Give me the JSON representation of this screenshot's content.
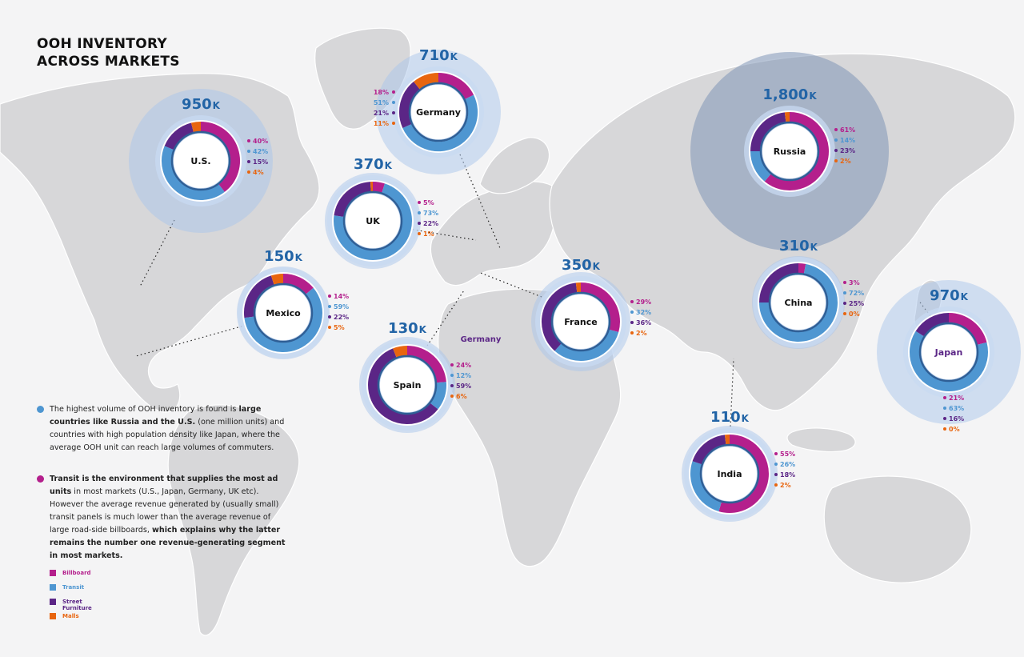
{
  "title": {
    "line1": "OOH INVENTORY",
    "line2": "ACROSS MARKETS"
  },
  "colors": {
    "billboard": "#b41f8c",
    "transit": "#4e96d1",
    "street_furniture": "#5b2686",
    "malls": "#e8650f",
    "value_blue": "#2264a6",
    "land": "#d7d7d9",
    "bubble": "#a9c5ec"
  },
  "stray_label": "Germany",
  "markets": [
    {
      "name": "U.S.",
      "volume_k": 950,
      "volume_label": "950",
      "shares": {
        "billboard": 40,
        "transit": 42,
        "street_furniture": 15,
        "malls": 4
      },
      "labels": [
        "40%",
        "42%",
        "15%",
        "4%"
      ]
    },
    {
      "name": "Germany",
      "volume_k": 710,
      "volume_label": "710",
      "shares": {
        "billboard": 18,
        "transit": 51,
        "street_furniture": 21,
        "malls": 11
      },
      "labels": [
        "18%",
        "51%",
        "21%",
        "11%"
      ]
    },
    {
      "name": "UK",
      "volume_k": 370,
      "volume_label": "370",
      "shares": {
        "billboard": 5,
        "transit": 73,
        "street_furniture": 22,
        "malls": 1
      },
      "labels": [
        "5%",
        "73%",
        "22%",
        "1%"
      ]
    },
    {
      "name": "Russia",
      "volume_k": 1800,
      "volume_label": "1,800",
      "shares": {
        "billboard": 61,
        "transit": 14,
        "street_furniture": 23,
        "malls": 2
      },
      "labels": [
        "61%",
        "14%",
        "23%",
        "2%"
      ]
    },
    {
      "name": "Mexico",
      "volume_k": 150,
      "volume_label": "150",
      "shares": {
        "billboard": 14,
        "transit": 59,
        "street_furniture": 22,
        "malls": 5
      },
      "labels": [
        "14%",
        "59%",
        "22%",
        "5%"
      ]
    },
    {
      "name": "France",
      "volume_k": 350,
      "volume_label": "350",
      "shares": {
        "billboard": 29,
        "transit": 32,
        "street_furniture": 36,
        "malls": 2
      },
      "labels": [
        "29%",
        "32%",
        "36%",
        "2%"
      ]
    },
    {
      "name": "China",
      "volume_k": 310,
      "volume_label": "310",
      "shares": {
        "billboard": 3,
        "transit": 72,
        "street_furniture": 25,
        "malls": 0
      },
      "labels": [
        "3%",
        "72%",
        "25%",
        "0%"
      ]
    },
    {
      "name": "Japan",
      "volume_k": 970,
      "volume_label": "970",
      "shares": {
        "billboard": 21,
        "transit": 63,
        "street_furniture": 16,
        "malls": 0
      },
      "labels": [
        "21%",
        "63%",
        "16%",
        "0%"
      ]
    },
    {
      "name": "Spain",
      "volume_k": 130,
      "volume_label": "130",
      "shares": {
        "billboard": 24,
        "transit": 12,
        "street_furniture": 59,
        "malls": 6
      },
      "labels": [
        "24%",
        "12%",
        "59%",
        "6%"
      ]
    },
    {
      "name": "India",
      "volume_k": 110,
      "volume_label": "110",
      "shares": {
        "billboard": 55,
        "transit": 26,
        "street_furniture": 18,
        "malls": 2
      },
      "labels": [
        "55%",
        "26%",
        "18%",
        "2%"
      ]
    }
  ],
  "unit_suffix": "K",
  "notes": [
    {
      "t1": "The highest volume of OOH inventory is found is ",
      "b1": "large countries like Russia and the U.S.",
      "t2": " (one million units) and countries with high population density like Japan, where the average OOH unit can reach large volumes of commuters.",
      "b2": "",
      "t3": ""
    },
    {
      "t1": "",
      "b1": "Transit is the environment that supplies the most ad units",
      "t2": " in most markets (U.S., Japan, Germany, UK etc). However the average revenue generated by (usually small) transit panels is much lower than the average revenue of large road-side billboards, ",
      "b2": "which explains why the latter remains the number one revenue-generating segment in most markets.",
      "t3": ""
    }
  ],
  "legend": [
    {
      "key": "billboard",
      "label": "Billboard"
    },
    {
      "key": "transit",
      "label": "Transit"
    },
    {
      "key": "street_furniture",
      "label": "Street Furniture"
    },
    {
      "key": "malls",
      "label": "Malls"
    }
  ]
}
